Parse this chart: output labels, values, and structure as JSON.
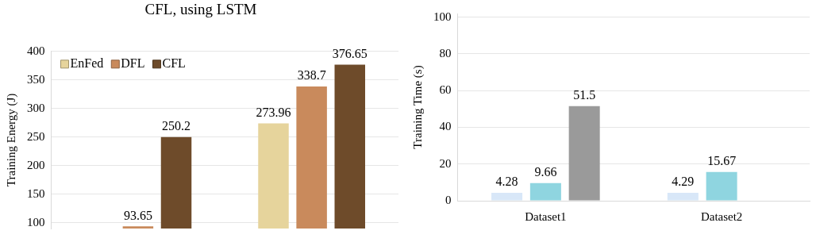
{
  "chart_data": [
    {
      "type": "bar",
      "title": "CFL, using LSTM",
      "ylabel": "Training Energy (J)",
      "categories": [
        null,
        null
      ],
      "series": [
        {
          "name": "EnFed",
          "color": "#e6d49c",
          "values": [
            null,
            273.96
          ]
        },
        {
          "name": "DFL",
          "color": "#c98a5c",
          "values": [
            93.65,
            338.7
          ]
        },
        {
          "name": "CFL",
          "color": "#6e4b2a",
          "values": [
            250.2,
            376.65
          ]
        }
      ],
      "ylim": [
        90,
        400
      ],
      "yticks": [
        100,
        150,
        200,
        250,
        300,
        350,
        400
      ],
      "grid": "y",
      "legend": "top left",
      "data_labels": true,
      "tick_labels": "y"
    },
    {
      "type": "bar",
      "ylabel": "Training Time (s)",
      "categories": [
        "Dataset1",
        "Dataset2"
      ],
      "series": [
        {
          "color": "#d8e7f8",
          "values": [
            4.28,
            4.29
          ]
        },
        {
          "color": "#8fd5e0",
          "values": [
            9.66,
            15.67
          ]
        },
        {
          "color": "#9a9a9a",
          "values": [
            51.5,
            null
          ]
        }
      ],
      "ylim": [
        0,
        102
      ],
      "yticks": [
        0,
        20,
        40,
        60,
        80,
        100
      ],
      "grid": "y",
      "legend": false,
      "data_labels": true
    }
  ]
}
